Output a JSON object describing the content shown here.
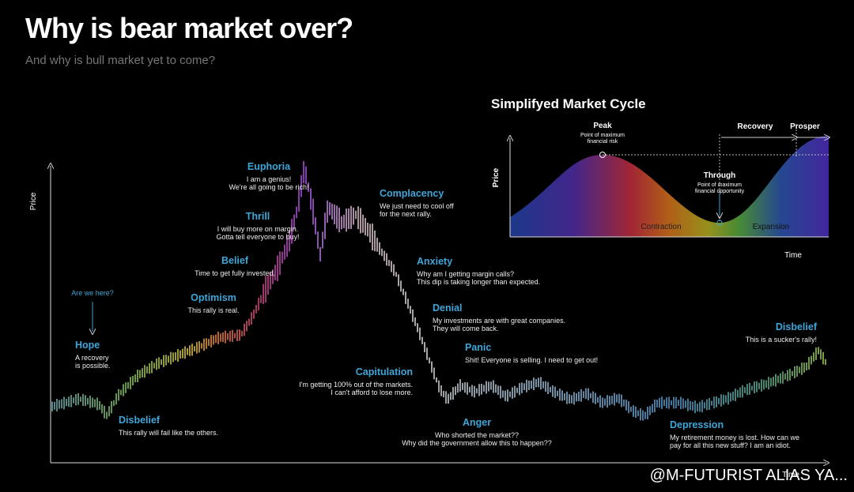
{
  "header": {
    "title": "Why is bear market over?",
    "subtitle": "And why is bull market yet to come?"
  },
  "main": {
    "y_label": "Price",
    "x_label": "Time",
    "pointer": "Are we here?",
    "stages": [
      {
        "name": "Hope",
        "caption": [
          "A recovery",
          "is possible."
        ]
      },
      {
        "name": "Disbelief",
        "caption": [
          "This rally will fail like the others."
        ]
      },
      {
        "name": "Optimism",
        "caption": [
          "This rally is real."
        ]
      },
      {
        "name": "Belief",
        "caption": [
          "Time to get fully invested."
        ]
      },
      {
        "name": "Thrill",
        "caption": [
          "I will buy more on margin.",
          "Gotta tell everyone to buy!"
        ]
      },
      {
        "name": "Euphoria",
        "caption": [
          "I am a genius!",
          "We're all going to be rich!"
        ]
      },
      {
        "name": "Complacency",
        "caption": [
          "We just need to cool off",
          "for the next rally."
        ]
      },
      {
        "name": "Anxiety",
        "caption": [
          "Why am I getting margin calls?",
          "This dip is taking longer than expected."
        ]
      },
      {
        "name": "Denial",
        "caption": [
          "My investments are with great companies.",
          "They will come back."
        ]
      },
      {
        "name": "Panic",
        "caption": [
          "Shit! Everyone is selling. I need to get out!"
        ]
      },
      {
        "name": "Capitulation",
        "caption": [
          "I'm getting 100% out of the markets.",
          "I can't afford to lose more."
        ]
      },
      {
        "name": "Anger",
        "caption": [
          "Who shorted the market??",
          "Why did the government allow this to happen??"
        ]
      },
      {
        "name": "Depression",
        "caption": [
          "My retirement money is lost. How can we",
          "pay for all this new stuff? I am an idiot."
        ]
      },
      {
        "name": "Disbelief",
        "caption": [
          "This is a sucker's rally!"
        ]
      }
    ]
  },
  "inset": {
    "title": "Simplifyed Market Cycle",
    "peak": "Peak",
    "peak_note": [
      "Point of maximum",
      "financial risk"
    ],
    "through": "Through",
    "through_note": [
      "Point of maximum",
      "financial opportunity"
    ],
    "recovery": "Recovery",
    "prosper": "Prosper",
    "contraction": "Contraction",
    "expansion": "Expansion",
    "y_label": "Price",
    "x_label": "Time"
  },
  "watermark": "@M-FUTURIST  ALIAS YA..."
}
